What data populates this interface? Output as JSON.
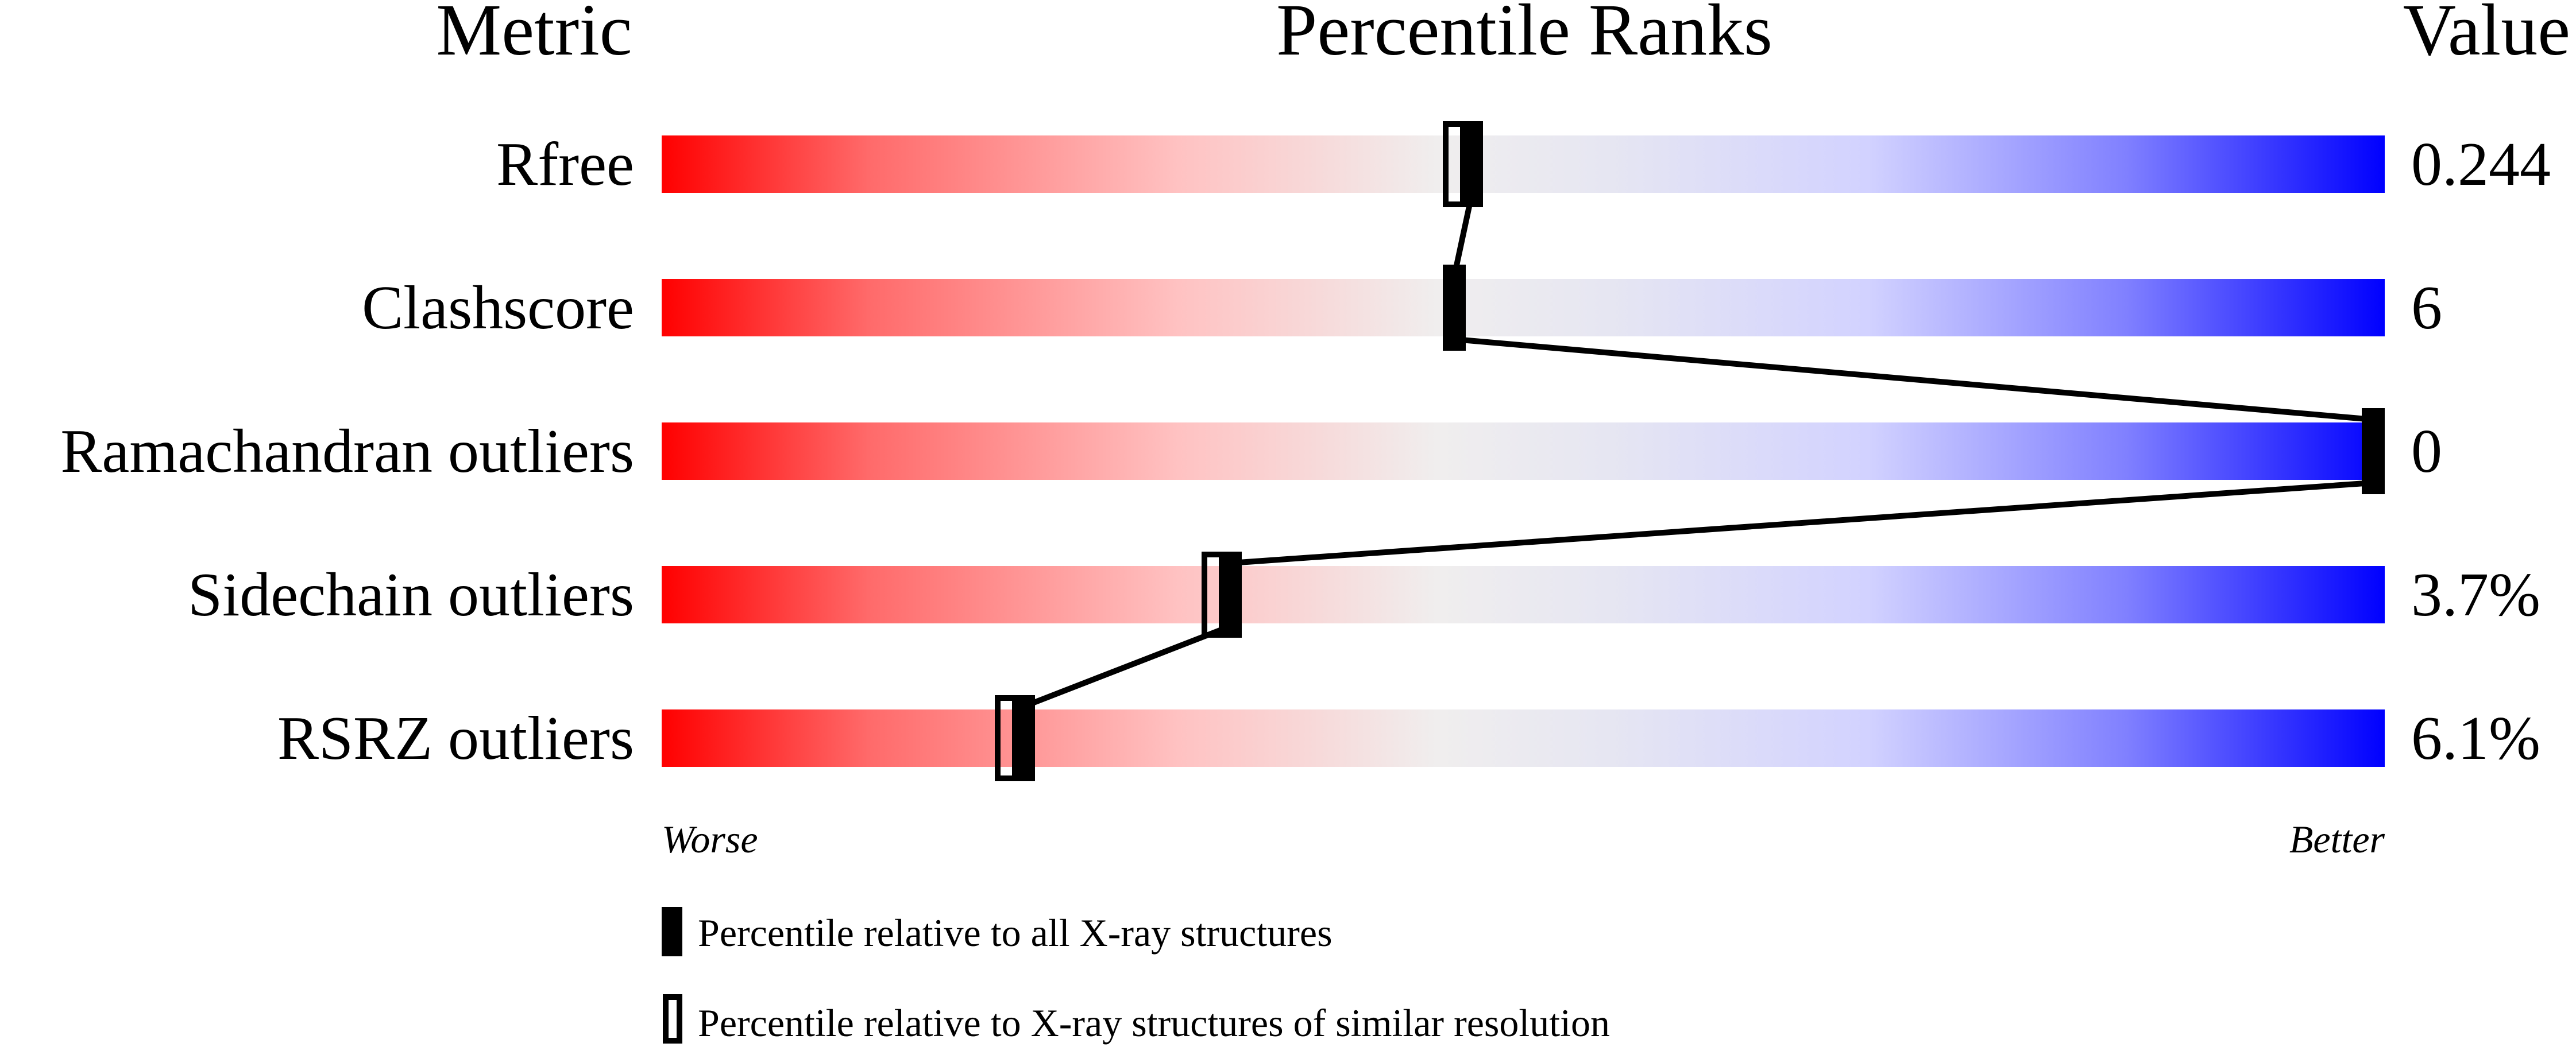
{
  "chart_data": {
    "type": "slider",
    "headers": {
      "metric": "Metric",
      "percentile": "Percentile Ranks",
      "value": "Value"
    },
    "xlim": [
      0,
      100
    ],
    "rows": [
      {
        "metric": "Rfree",
        "value": "0.244",
        "percentile_all": 47,
        "percentile_similar": 46
      },
      {
        "metric": "Clashscore",
        "value": "6",
        "percentile_all": 46,
        "percentile_similar": null
      },
      {
        "metric": "Ramachandran outliers",
        "value": "0",
        "percentile_all": 100,
        "percentile_similar": null
      },
      {
        "metric": "Sidechain outliers",
        "value": "3.7%",
        "percentile_all": 33,
        "percentile_similar": 32
      },
      {
        "metric": "RSRZ outliers",
        "value": "6.1%",
        "percentile_all": 21,
        "percentile_similar": 20
      }
    ],
    "axis_labels": {
      "left": "Worse",
      "right": "Better"
    },
    "legend": {
      "filled": "Percentile relative to all X-ray structures",
      "open": "Percentile relative to X-ray structures of similar resolution"
    },
    "colors": {
      "worse": "#ff0000",
      "middle": "#eeeeee",
      "better": "#0000ff",
      "marker": "#000000"
    }
  }
}
